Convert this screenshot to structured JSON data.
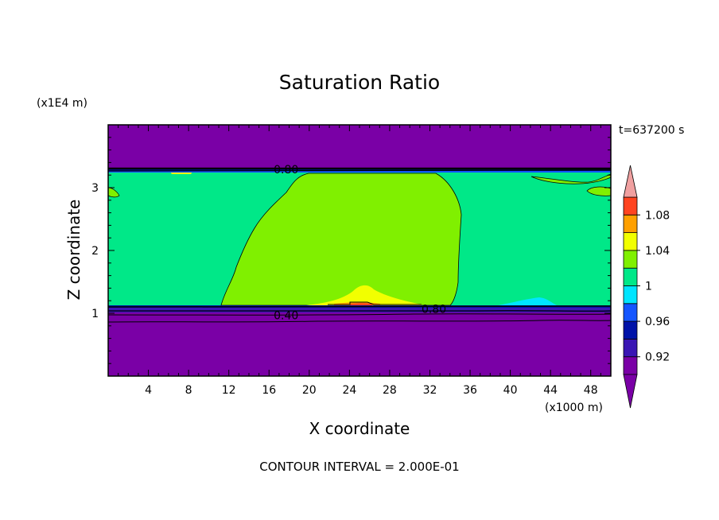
{
  "chart_data": {
    "type": "heatmap",
    "title": "Saturation Ratio",
    "xlabel": "X coordinate",
    "ylabel": "Z coordinate",
    "x_unit": "(x1000 m)",
    "y_unit": "(x1E4 m)",
    "time_label": "t=637200 s",
    "footer": "CONTOUR INTERVAL = 2.000E-01",
    "xlim": [
      0,
      50
    ],
    "ylim": [
      0,
      4
    ],
    "x_ticks": [
      {
        "value": 4,
        "label": "4"
      },
      {
        "value": 8,
        "label": "8"
      },
      {
        "value": 12,
        "label": "12"
      },
      {
        "value": 16,
        "label": "16"
      },
      {
        "value": 20,
        "label": "20"
      },
      {
        "value": 24,
        "label": "24"
      },
      {
        "value": 28,
        "label": "28"
      },
      {
        "value": 32,
        "label": "32"
      },
      {
        "value": 36,
        "label": "36"
      },
      {
        "value": 40,
        "label": "40"
      },
      {
        "value": 44,
        "label": "44"
      },
      {
        "value": 48,
        "label": "48"
      }
    ],
    "y_ticks": [
      {
        "value": 1,
        "label": "1"
      },
      {
        "value": 2,
        "label": "2"
      },
      {
        "value": 3,
        "label": "3"
      }
    ],
    "contour_labels": [
      {
        "text": "0.80",
        "x": 17.7,
        "y": 3.29
      },
      {
        "text": "0.40",
        "x": 17.7,
        "y": 0.97
      },
      {
        "text": "0.80",
        "x": 32.4,
        "y": 1.07
      }
    ],
    "colorbar": {
      "labels": [
        "1.08",
        "1.04",
        "1",
        "0.96",
        "0.92"
      ],
      "levels": [
        0.9,
        0.92,
        0.94,
        0.96,
        0.98,
        1.0,
        1.02,
        1.04,
        1.06,
        1.08,
        1.1
      ],
      "colors": [
        "#7a00a6",
        "#3a16b4",
        "#0012a8",
        "#1455ff",
        "#00e5ff",
        "#00e888",
        "#80f000",
        "#f2ff00",
        "#ffa000",
        "#ff4420",
        "#f0a0a0"
      ]
    },
    "regions": [
      {
        "name": "upper-layer",
        "value": "< 0.90",
        "color": "#7a00a6"
      },
      {
        "name": "lower-layer",
        "value": "< 0.90",
        "color": "#7a00a6"
      },
      {
        "name": "cloud-band",
        "value": "0.98-1.00",
        "color": "#00e888"
      },
      {
        "name": "cloud-core",
        "value": "1.00-1.02",
        "color": "#80f000"
      },
      {
        "name": "cloud-base-max",
        "value": "1.02-1.04",
        "color": "#f2ff00"
      }
    ]
  }
}
